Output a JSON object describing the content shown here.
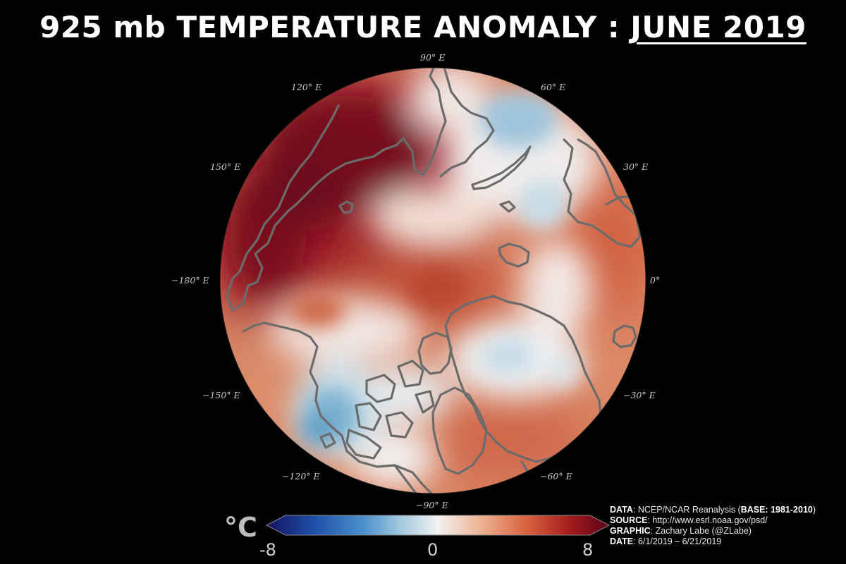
{
  "title": {
    "prefix": "925 mb TEMPERATURE ANOMALY :",
    "date": "JUNE 2019"
  },
  "longitude_labels": {
    "90E": "90° E",
    "60E": "60° E",
    "30E": "30° E",
    "0": "0°",
    "m30E": "−30° E",
    "m60E": "−60° E",
    "m90E": "−90° E",
    "m120E": "−120° E",
    "m150E": "−150° E",
    "m180E": "−180° E",
    "150E": "150° E",
    "120E": "120° E"
  },
  "colorbar": {
    "unit": "°C",
    "min_label": "-8",
    "mid_label": "0",
    "max_label": "8",
    "colors": [
      "#12125e",
      "#1e50a8",
      "#4a8fcc",
      "#a9cde0",
      "#f2f2f2",
      "#eeb596",
      "#d9623e",
      "#a51e1e",
      "#5c0018"
    ]
  },
  "credits": {
    "data_label": "DATA",
    "data_value": ": NCEP/NCAR Reanalysis (",
    "base_label": "BASE: 1981-2010",
    "data_close": ")",
    "source_label": "SOURCE",
    "source_value": ": http://www.esrl.noaa.gov/psd/",
    "graphic_label": "GRAPHIC",
    "graphic_value": ": Zachary Labe (@ZLabe)",
    "date_label": "DATE",
    "date_value": ": 6/1/2019 – 6/21/2019"
  },
  "map": {
    "projection": "north-polar",
    "field_colors": {
      "dark_red": "#7a0a1e",
      "red": "#b8301f",
      "orange": "#d8744f",
      "light": "#f2d2c2",
      "white": "#f3f1f0",
      "light_blue": "#bcd6e4",
      "blue": "#6aa6c8"
    },
    "coastline_color": "#6b6b6b"
  }
}
